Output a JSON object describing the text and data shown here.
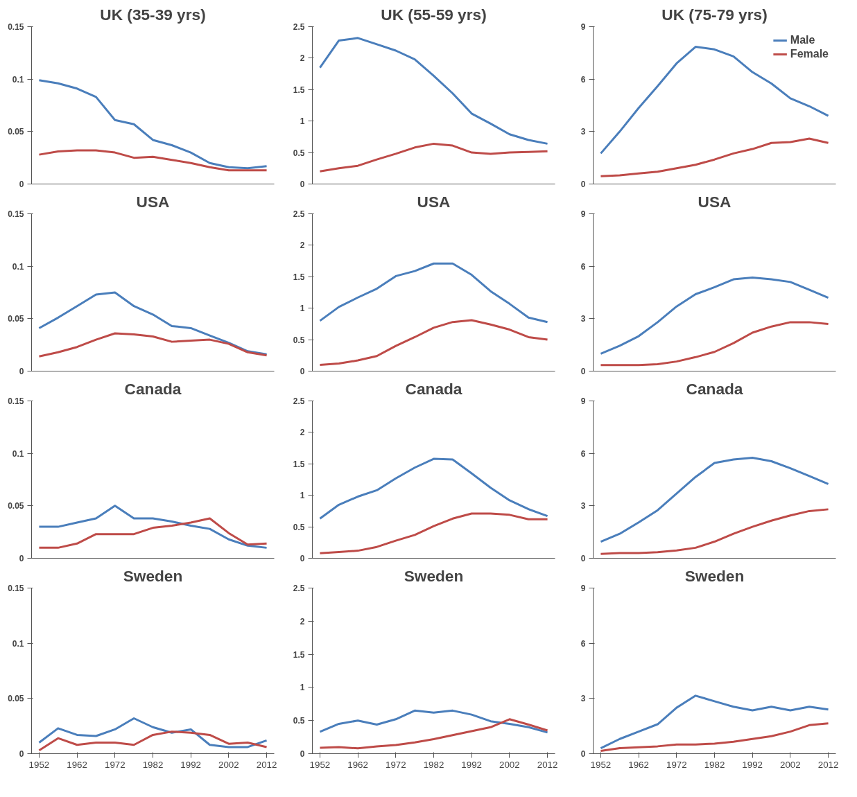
{
  "chart_data": [
    {
      "type": "line",
      "title": "UK (35-39 yrs)",
      "x": [
        1952,
        1957,
        1962,
        1967,
        1972,
        1977,
        1982,
        1987,
        1992,
        1997,
        2002,
        2007,
        2012
      ],
      "xlim": [
        1950,
        2014
      ],
      "ylim": [
        0,
        0.15
      ],
      "yticks": [
        0,
        0.05,
        0.1,
        0.15
      ],
      "tick_labels": "y",
      "grid": false,
      "legend": false,
      "series": [
        {
          "color": "#4a7ebb",
          "values": [
            0.099,
            0.096,
            0.091,
            0.083,
            0.061,
            0.057,
            0.042,
            0.037,
            0.03,
            0.02,
            0.016,
            0.015,
            0.017
          ]
        },
        {
          "color": "#be4b48",
          "values": [
            0.028,
            0.031,
            0.032,
            0.032,
            0.03,
            0.025,
            0.026,
            0.023,
            0.02,
            0.016,
            0.013,
            0.013,
            0.013
          ]
        }
      ]
    },
    {
      "type": "line",
      "title": "UK (55-59 yrs)",
      "x": [
        1952,
        1957,
        1962,
        1967,
        1972,
        1977,
        1982,
        1987,
        1992,
        1997,
        2002,
        2007,
        2012
      ],
      "xlim": [
        1950,
        2014
      ],
      "ylim": [
        0,
        2.5
      ],
      "yticks": [
        0,
        0.5,
        1,
        1.5,
        2,
        2.5
      ],
      "tick_labels": "y",
      "grid": false,
      "legend": false,
      "series": [
        {
          "color": "#4a7ebb",
          "values": [
            1.85,
            2.28,
            2.32,
            2.22,
            2.12,
            1.98,
            1.72,
            1.44,
            1.12,
            0.96,
            0.79,
            0.7,
            0.64
          ]
        },
        {
          "color": "#be4b48",
          "values": [
            0.2,
            0.25,
            0.29,
            0.39,
            0.48,
            0.58,
            0.64,
            0.61,
            0.5,
            0.48,
            0.5,
            0.51,
            0.52
          ]
        }
      ]
    },
    {
      "type": "line",
      "title": "UK (75-79 yrs)",
      "x": [
        1952,
        1957,
        1962,
        1967,
        1972,
        1977,
        1982,
        1987,
        1992,
        1997,
        2002,
        2007,
        2012
      ],
      "xlim": [
        1950,
        2014
      ],
      "ylim": [
        0,
        9
      ],
      "yticks": [
        0,
        3,
        6,
        9
      ],
      "tick_labels": "y",
      "grid": false,
      "legend": "top right",
      "series": [
        {
          "name": "Male",
          "color": "#4a7ebb",
          "values": [
            1.75,
            3.0,
            4.35,
            5.6,
            6.9,
            7.85,
            7.7,
            7.3,
            6.4,
            5.75,
            4.9,
            4.45,
            3.9
          ]
        },
        {
          "name": "Female",
          "color": "#be4b48",
          "values": [
            0.45,
            0.5,
            0.6,
            0.7,
            0.9,
            1.1,
            1.4,
            1.75,
            2.0,
            2.35,
            2.4,
            2.6,
            2.35
          ]
        }
      ]
    },
    {
      "type": "line",
      "title": "USA",
      "x": [
        1952,
        1957,
        1962,
        1967,
        1972,
        1977,
        1982,
        1987,
        1992,
        1997,
        2002,
        2007,
        2012
      ],
      "xlim": [
        1950,
        2014
      ],
      "ylim": [
        0,
        0.15
      ],
      "yticks": [
        0,
        0.05,
        0.1,
        0.15
      ],
      "tick_labels": "y",
      "grid": false,
      "legend": false,
      "series": [
        {
          "color": "#4a7ebb",
          "values": [
            0.041,
            0.051,
            0.062,
            0.073,
            0.075,
            0.062,
            0.054,
            0.043,
            0.041,
            0.034,
            0.027,
            0.019,
            0.016
          ]
        },
        {
          "color": "#be4b48",
          "values": [
            0.014,
            0.018,
            0.023,
            0.03,
            0.036,
            0.035,
            0.033,
            0.028,
            0.029,
            0.03,
            0.026,
            0.018,
            0.015
          ]
        }
      ]
    },
    {
      "type": "line",
      "title": "USA",
      "x": [
        1952,
        1957,
        1962,
        1967,
        1972,
        1977,
        1982,
        1987,
        1992,
        1997,
        2002,
        2007,
        2012
      ],
      "xlim": [
        1950,
        2014
      ],
      "ylim": [
        0,
        2.5
      ],
      "yticks": [
        0,
        0.5,
        1,
        1.5,
        2,
        2.5
      ],
      "tick_labels": "y",
      "grid": false,
      "legend": false,
      "series": [
        {
          "color": "#4a7ebb",
          "values": [
            0.8,
            1.02,
            1.17,
            1.31,
            1.51,
            1.59,
            1.71,
            1.71,
            1.53,
            1.27,
            1.07,
            0.85,
            0.78
          ]
        },
        {
          "color": "#be4b48",
          "values": [
            0.1,
            0.12,
            0.17,
            0.24,
            0.4,
            0.54,
            0.69,
            0.78,
            0.81,
            0.74,
            0.66,
            0.54,
            0.5
          ]
        }
      ]
    },
    {
      "type": "line",
      "title": "USA",
      "x": [
        1952,
        1957,
        1962,
        1967,
        1972,
        1977,
        1982,
        1987,
        1992,
        1997,
        2002,
        2007,
        2012
      ],
      "xlim": [
        1950,
        2014
      ],
      "ylim": [
        0,
        9
      ],
      "yticks": [
        0,
        3,
        6,
        9
      ],
      "tick_labels": "y",
      "grid": false,
      "legend": false,
      "series": [
        {
          "color": "#4a7ebb",
          "values": [
            1.0,
            1.45,
            2.0,
            2.8,
            3.7,
            4.4,
            4.8,
            5.25,
            5.35,
            5.25,
            5.1,
            4.65,
            4.2
          ]
        },
        {
          "color": "#be4b48",
          "values": [
            0.35,
            0.35,
            0.35,
            0.4,
            0.55,
            0.8,
            1.1,
            1.6,
            2.2,
            2.55,
            2.8,
            2.8,
            2.7
          ]
        }
      ]
    },
    {
      "type": "line",
      "title": "Canada",
      "x": [
        1952,
        1957,
        1962,
        1967,
        1972,
        1977,
        1982,
        1987,
        1992,
        1997,
        2002,
        2007,
        2012
      ],
      "xlim": [
        1950,
        2014
      ],
      "ylim": [
        0,
        0.15
      ],
      "yticks": [
        0,
        0.05,
        0.1,
        0.15
      ],
      "tick_labels": "y",
      "grid": false,
      "legend": false,
      "series": [
        {
          "color": "#4a7ebb",
          "values": [
            0.03,
            0.03,
            0.034,
            0.038,
            0.05,
            0.038,
            0.038,
            0.035,
            0.031,
            0.028,
            0.018,
            0.012,
            0.01
          ]
        },
        {
          "color": "#be4b48",
          "values": [
            0.01,
            0.01,
            0.014,
            0.023,
            0.023,
            0.023,
            0.029,
            0.031,
            0.034,
            0.038,
            0.024,
            0.013,
            0.014
          ]
        }
      ]
    },
    {
      "type": "line",
      "title": "Canada",
      "x": [
        1952,
        1957,
        1962,
        1967,
        1972,
        1977,
        1982,
        1987,
        1992,
        1997,
        2002,
        2007,
        2012
      ],
      "xlim": [
        1950,
        2014
      ],
      "ylim": [
        0,
        2.5
      ],
      "yticks": [
        0,
        0.5,
        1,
        1.5,
        2,
        2.5
      ],
      "tick_labels": "y",
      "grid": false,
      "legend": false,
      "series": [
        {
          "color": "#4a7ebb",
          "values": [
            0.63,
            0.85,
            0.98,
            1.08,
            1.27,
            1.44,
            1.58,
            1.57,
            1.35,
            1.12,
            0.92,
            0.78,
            0.67
          ]
        },
        {
          "color": "#be4b48",
          "values": [
            0.08,
            0.1,
            0.12,
            0.18,
            0.28,
            0.37,
            0.51,
            0.63,
            0.71,
            0.71,
            0.69,
            0.62,
            0.62
          ]
        }
      ]
    },
    {
      "type": "line",
      "title": "Canada",
      "x": [
        1952,
        1957,
        1962,
        1967,
        1972,
        1977,
        1982,
        1987,
        1992,
        1997,
        2002,
        2007,
        2012
      ],
      "xlim": [
        1950,
        2014
      ],
      "ylim": [
        0,
        9
      ],
      "yticks": [
        0,
        3,
        6,
        9
      ],
      "tick_labels": "y",
      "grid": false,
      "legend": false,
      "series": [
        {
          "color": "#4a7ebb",
          "values": [
            0.95,
            1.4,
            2.05,
            2.75,
            3.7,
            4.65,
            5.45,
            5.65,
            5.75,
            5.55,
            5.15,
            4.7,
            4.25
          ]
        },
        {
          "color": "#be4b48",
          "values": [
            0.25,
            0.3,
            0.3,
            0.35,
            0.45,
            0.6,
            0.95,
            1.4,
            1.8,
            2.15,
            2.45,
            2.7,
            2.8
          ]
        }
      ]
    },
    {
      "type": "line",
      "title": "Sweden",
      "x": [
        1952,
        1957,
        1962,
        1967,
        1972,
        1977,
        1982,
        1987,
        1992,
        1997,
        2002,
        2007,
        2012
      ],
      "xlim": [
        1950,
        2014
      ],
      "xticks": [
        1952,
        1962,
        1972,
        1982,
        1992,
        2002,
        2012
      ],
      "ylim": [
        0,
        0.15
      ],
      "yticks": [
        0,
        0.05,
        0.1,
        0.15
      ],
      "grid": false,
      "legend": false,
      "series": [
        {
          "color": "#4a7ebb",
          "values": [
            0.01,
            0.023,
            0.017,
            0.016,
            0.022,
            0.032,
            0.024,
            0.019,
            0.022,
            0.008,
            0.006,
            0.006,
            0.012
          ]
        },
        {
          "color": "#be4b48",
          "values": [
            0.003,
            0.014,
            0.008,
            0.01,
            0.01,
            0.008,
            0.017,
            0.02,
            0.019,
            0.017,
            0.009,
            0.01,
            0.006
          ]
        }
      ]
    },
    {
      "type": "line",
      "title": "Sweden",
      "x": [
        1952,
        1957,
        1962,
        1967,
        1972,
        1977,
        1982,
        1987,
        1992,
        1997,
        2002,
        2007,
        2012
      ],
      "xlim": [
        1950,
        2014
      ],
      "xticks": [
        1952,
        1962,
        1972,
        1982,
        1992,
        2002,
        2012
      ],
      "ylim": [
        0,
        2.5
      ],
      "yticks": [
        0,
        0.5,
        1,
        1.5,
        2,
        2.5
      ],
      "grid": false,
      "legend": false,
      "series": [
        {
          "color": "#4a7ebb",
          "values": [
            0.33,
            0.45,
            0.5,
            0.44,
            0.52,
            0.65,
            0.62,
            0.65,
            0.59,
            0.49,
            0.45,
            0.4,
            0.32
          ]
        },
        {
          "color": "#be4b48",
          "values": [
            0.09,
            0.1,
            0.08,
            0.11,
            0.13,
            0.17,
            0.22,
            0.28,
            0.34,
            0.4,
            0.52,
            0.44,
            0.35
          ]
        }
      ]
    },
    {
      "type": "line",
      "title": "Sweden",
      "x": [
        1952,
        1957,
        1962,
        1967,
        1972,
        1977,
        1982,
        1987,
        1992,
        1997,
        2002,
        2007,
        2012
      ],
      "xlim": [
        1950,
        2014
      ],
      "xticks": [
        1952,
        1962,
        1972,
        1982,
        1992,
        2002,
        2012
      ],
      "ylim": [
        0,
        9
      ],
      "yticks": [
        0,
        3,
        6,
        9
      ],
      "grid": false,
      "legend": false,
      "series": [
        {
          "color": "#4a7ebb",
          "values": [
            0.3,
            0.8,
            1.2,
            1.6,
            2.5,
            3.15,
            2.85,
            2.55,
            2.35,
            2.55,
            2.35,
            2.55,
            2.4
          ]
        },
        {
          "color": "#be4b48",
          "values": [
            0.15,
            0.3,
            0.35,
            0.4,
            0.5,
            0.5,
            0.55,
            0.65,
            0.8,
            0.95,
            1.2,
            1.55,
            1.65
          ]
        }
      ]
    }
  ]
}
